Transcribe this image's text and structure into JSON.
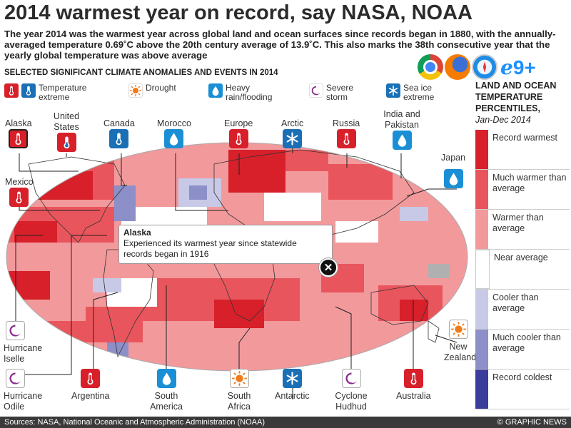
{
  "title": "2014 warmest year on record, say NASA, NOAA",
  "intro": "The year 2014 was the warmest year across global land and ocean surfaces since records began in 1880, with the annually-averaged temperature 0.69˚C above the 20th century average of 13.9˚C. This also marks the 38th consecutive year that the yearly global temperature was above average",
  "section_title": "SELECTED SIGNIFICANT CLIMATE ANOMALIES AND EVENTS IN 2014",
  "legend": {
    "temperature": {
      "label": "Temperature extreme",
      "icon": "thermometer-icon"
    },
    "drought": {
      "label": "Drought",
      "icon": "sun-icon"
    },
    "rain": {
      "label": "Heavy rain/flooding",
      "icon": "raindrop-icon"
    },
    "storm": {
      "label": "Severe storm",
      "icon": "hurricane-icon"
    },
    "seaice": {
      "label": "Sea ice extreme",
      "icon": "snowflake-icon"
    }
  },
  "browsers": {
    "badge": "9+"
  },
  "sidebar": {
    "title": "LAND AND OCEAN TEMPERATURE PERCENTILES,",
    "subtitle": "Jan-Dec 2014",
    "scale": [
      {
        "label": "Record warmest",
        "color": "#d7202a"
      },
      {
        "label": "Much warmer than average",
        "color": "#e9555c"
      },
      {
        "label": "Warmer than average",
        "color": "#f2999c"
      },
      {
        "label": "Near average",
        "color": "#ffffff"
      },
      {
        "label": "Cooler than average",
        "color": "#c7c9e6"
      },
      {
        "label": "Much cooler than average",
        "color": "#8d8fc8"
      },
      {
        "label": "Record coldest",
        "color": "#3a3d9c"
      }
    ]
  },
  "events": {
    "alaska": "Alaska",
    "united_states": "United States",
    "canada": "Canada",
    "morocco": "Morocco",
    "europe": "Europe",
    "arctic": "Arctic",
    "russia": "Russia",
    "india_pakistan": "India and Pakistan",
    "japan": "Japan",
    "mexico": "Mexico",
    "hurricane_iselle": "Hurricane Iselle",
    "hurricane_odile": "Hurricane Odile",
    "argentina": "Argentina",
    "south_america": "South America",
    "south_africa": "South Africa",
    "antarctic": "Antarctic",
    "cyclone_hudhud": "Cyclone Hudhud",
    "australia": "Australia",
    "new_zealand": "New Zealand"
  },
  "popup": {
    "title": "Alaska",
    "text": "Experienced its warmest year since statewide records began in 1916",
    "close": "✕"
  },
  "footer": {
    "sources": "Sources: NASA, National Oceanic and Atmospheric Administration (NOAA)",
    "copyright": "© GRAPHIC NEWS"
  },
  "colors": {
    "temp_red": "#d7202a",
    "temp_blue": "#1b6fb5",
    "drought_orange": "#f07a1a",
    "rain_blue": "#1a8fd6",
    "storm_purple": "#8a2c8e",
    "ice_blue": "#1b6fb5"
  }
}
